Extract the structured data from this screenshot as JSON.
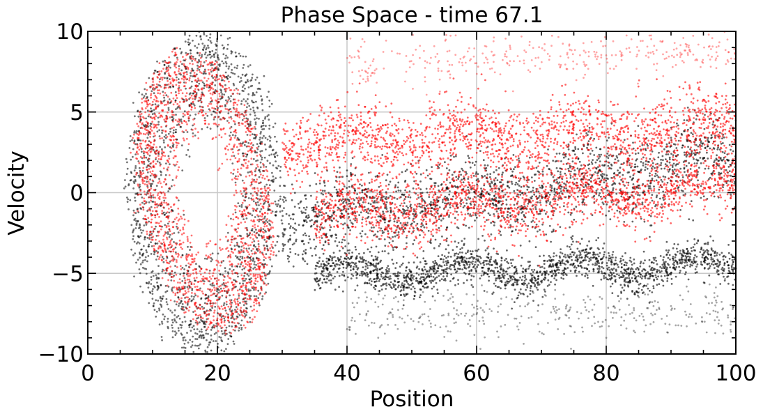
{
  "chart_data": {
    "type": "scatter",
    "title": "Phase Space - time 67.1",
    "xlabel": "Position",
    "ylabel": "Velocity",
    "xlim": [
      0,
      100
    ],
    "ylim": [
      -10,
      10
    ],
    "xticks": [
      0,
      20,
      40,
      60,
      80,
      100
    ],
    "yticks": [
      -10,
      -5,
      0,
      5,
      10
    ],
    "xtick_labels": [
      "0",
      "20",
      "40",
      "60",
      "80",
      "100"
    ],
    "ytick_labels": [
      "−10",
      "−5",
      "0",
      "5",
      "10"
    ],
    "grid": true,
    "legend": "none",
    "series": [
      {
        "color": "#000000",
        "description_points": "dense phase-space particles (black)",
        "bands": [
          {
            "kind": "vortex",
            "cx": 18,
            "cy": 0,
            "rx": 12,
            "ry": 8.5,
            "phase_shift": 0.0
          },
          {
            "kind": "stream",
            "x0": 30,
            "x1": 100,
            "y_start": -2,
            "y_end": 2,
            "spread": 2.2
          },
          {
            "kind": "stream",
            "x0": 35,
            "x1": 100,
            "y_start": -5,
            "y_end": -4.5,
            "spread": 1.0
          },
          {
            "kind": "sparse",
            "x0": 40,
            "x1": 100,
            "y_start": -7.5,
            "y_end": -7.5,
            "spread": 1.3
          }
        ]
      },
      {
        "color": "#ff0000",
        "description_points": "dense phase-space particles (red)",
        "bands": [
          {
            "kind": "vortex",
            "cx": 18,
            "cy": 0,
            "rx": 10.5,
            "ry": 7.5,
            "phase_shift": 0.6
          },
          {
            "kind": "stream",
            "x0": 30,
            "x1": 100,
            "y_start": 3,
            "y_end": 4,
            "spread": 2.0
          },
          {
            "kind": "stream",
            "x0": 35,
            "x1": 100,
            "y_start": -1.5,
            "y_end": 0.5,
            "spread": 1.8
          },
          {
            "kind": "sparse",
            "x0": 40,
            "x1": 100,
            "y_start": 8,
            "y_end": 8.8,
            "spread": 1.2
          }
        ]
      }
    ]
  }
}
